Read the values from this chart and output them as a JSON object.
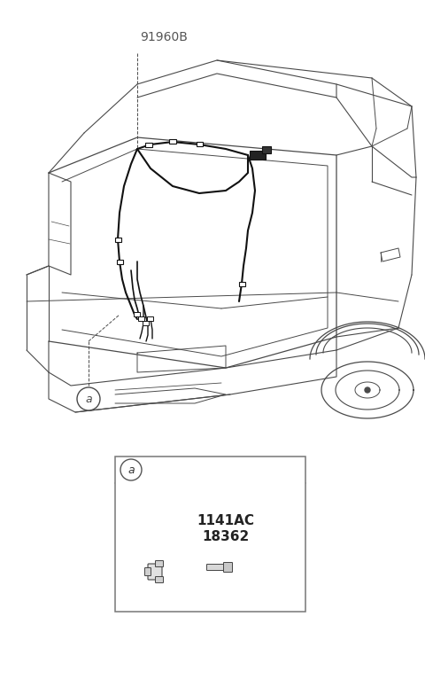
{
  "bg_color": "#ffffff",
  "lc": "#4a4a4a",
  "wlc": "#111111",
  "label_91960B": "91960B",
  "label_a": "a",
  "label_1141AC": "1141AC",
  "label_18362": "18362",
  "fig_width": 4.8,
  "fig_height": 7.66,
  "dpi": 100
}
